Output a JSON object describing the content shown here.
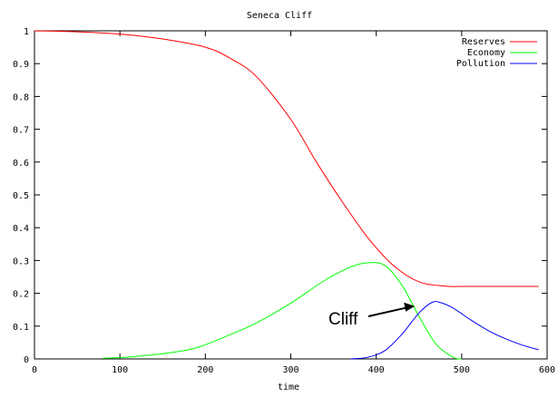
{
  "chart_data": {
    "type": "line",
    "title": "Seneca Cliff",
    "xlabel": "time",
    "ylabel": "",
    "xlim": [
      0,
      600
    ],
    "ylim": [
      0,
      1
    ],
    "x_ticks": [
      0,
      100,
      200,
      300,
      400,
      500,
      600
    ],
    "y_ticks": [
      0,
      0.1,
      0.2,
      0.3,
      0.4,
      0.5,
      0.6,
      0.7,
      0.8,
      0.9,
      1
    ],
    "grid": false,
    "legend_position": "top-right",
    "annotation": {
      "text": "Cliff",
      "points_to": [
        460,
        0.15
      ]
    },
    "series": [
      {
        "name": "Reserves",
        "color": "#ff0000",
        "x": [
          0,
          50,
          100,
          150,
          200,
          230,
          260,
          300,
          330,
          360,
          390,
          420,
          450,
          480,
          500,
          550,
          590
        ],
        "values": [
          1.0,
          0.997,
          0.99,
          0.975,
          0.95,
          0.915,
          0.86,
          0.73,
          0.6,
          0.48,
          0.37,
          0.285,
          0.235,
          0.222,
          0.221,
          0.221,
          0.221
        ]
      },
      {
        "name": "Economy",
        "color": "#00ff00",
        "x": [
          80,
          100,
          120,
          150,
          180,
          200,
          230,
          260,
          300,
          340,
          370,
          390,
          410,
          430,
          450,
          470,
          490,
          500
        ],
        "values": [
          0.002,
          0.004,
          0.008,
          0.016,
          0.028,
          0.043,
          0.075,
          0.11,
          0.17,
          0.24,
          0.28,
          0.293,
          0.285,
          0.225,
          0.13,
          0.045,
          0.005,
          0.0
        ]
      },
      {
        "name": "Pollution",
        "color": "#0000ff",
        "x": [
          370,
          390,
          410,
          430,
          450,
          465,
          475,
          490,
          510,
          530,
          550,
          570,
          590
        ],
        "values": [
          0.0,
          0.005,
          0.025,
          0.075,
          0.14,
          0.172,
          0.172,
          0.155,
          0.12,
          0.088,
          0.063,
          0.043,
          0.028
        ]
      }
    ]
  }
}
